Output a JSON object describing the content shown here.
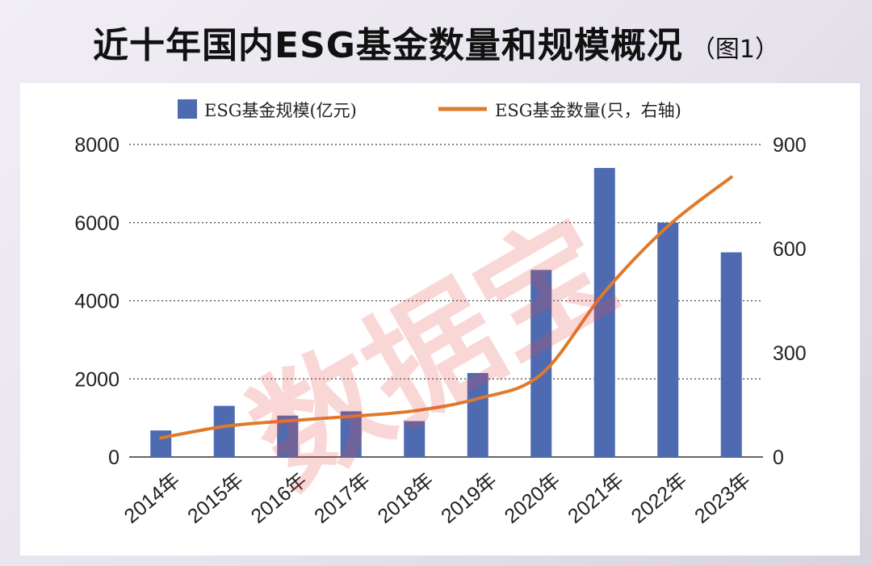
{
  "title": {
    "main": "近十年国内ESG基金数量和规模概况",
    "sub": "（图1）"
  },
  "watermark": "数据宝",
  "chart_data": {
    "type": "bar",
    "categories": [
      "2014年",
      "2015年",
      "2016年",
      "2017年",
      "2018年",
      "2019年",
      "2020年",
      "2021年",
      "2022年",
      "2023年"
    ],
    "series": [
      {
        "name": "ESG基金规模(亿元)",
        "type": "bar",
        "axis": "left",
        "color": "#4e6bb1",
        "values": [
          680,
          1310,
          1060,
          1170,
          920,
          2150,
          4790,
          7400,
          6000,
          5240
        ]
      },
      {
        "name": "ESG基金数量(只，右轴)",
        "type": "line",
        "axis": "right",
        "color": "#e07a2b",
        "values": [
          55,
          88,
          104,
          117,
          133,
          168,
          238,
          475,
          665,
          806
        ]
      }
    ],
    "yleft": {
      "ylim": [
        0,
        8000
      ],
      "ticks": [
        "0",
        "2000",
        "4000",
        "6000",
        "8000"
      ]
    },
    "yright": {
      "ylim": [
        0,
        900
      ],
      "ticks": [
        "0",
        "300",
        "600",
        "900"
      ]
    },
    "grid": "dotted horizontal",
    "legend_position": "top"
  }
}
